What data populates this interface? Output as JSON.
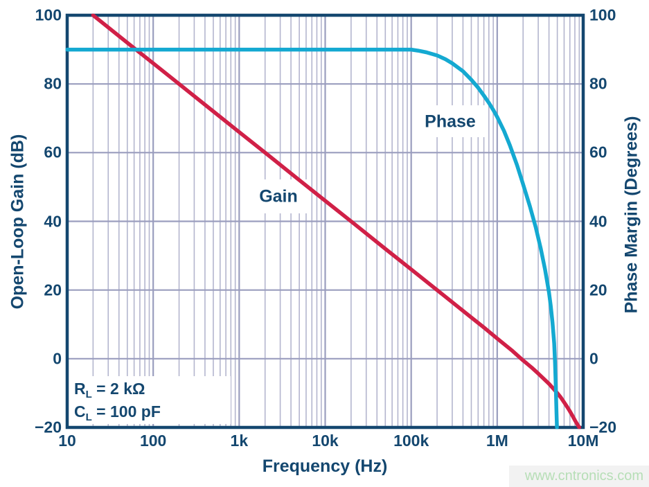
{
  "chart_data": {
    "type": "line",
    "title": "",
    "x_axis": {
      "label": "Frequency (Hz)",
      "scale": "log",
      "min": 10,
      "max": 10000000,
      "ticks": [
        {
          "value": 10,
          "label": "10"
        },
        {
          "value": 100,
          "label": "100"
        },
        {
          "value": 1000,
          "label": "1k"
        },
        {
          "value": 10000,
          "label": "10k"
        },
        {
          "value": 100000,
          "label": "100k"
        },
        {
          "value": 1000000,
          "label": "1M"
        },
        {
          "value": 10000000,
          "label": "10M"
        }
      ]
    },
    "y_axis_left": {
      "label": "Open-Loop Gain (dB)",
      "min": -20,
      "max": 100,
      "ticks": [
        {
          "value": 100,
          "label": "100"
        },
        {
          "value": 80,
          "label": "80"
        },
        {
          "value": 60,
          "label": "60"
        },
        {
          "value": 40,
          "label": "40"
        },
        {
          "value": 20,
          "label": "20"
        },
        {
          "value": 0,
          "label": "0"
        },
        {
          "value": -20,
          "label": "−20"
        }
      ]
    },
    "y_axis_right": {
      "label": "Phase Margin (Degrees)",
      "min": -20,
      "max": 100,
      "ticks": [
        {
          "value": 100,
          "label": "100"
        },
        {
          "value": 80,
          "label": "80"
        },
        {
          "value": 60,
          "label": "60"
        },
        {
          "value": 40,
          "label": "40"
        },
        {
          "value": 20,
          "label": "20"
        },
        {
          "value": 0,
          "label": "0"
        },
        {
          "value": -20,
          "label": "−20"
        }
      ]
    },
    "grid": {
      "horizontal_step": 20,
      "vertical": "log decades with minor lines 2-9",
      "legend_position": "none"
    },
    "series": [
      {
        "name": "Gain",
        "color": "#d02047",
        "axis": "left",
        "points": [
          [
            20,
            100
          ],
          [
            50,
            92
          ],
          [
            100,
            86
          ],
          [
            200,
            80
          ],
          [
            500,
            72
          ],
          [
            1000,
            66
          ],
          [
            2000,
            60
          ],
          [
            5000,
            52
          ],
          [
            10000,
            46
          ],
          [
            20000,
            40
          ],
          [
            50000,
            32
          ],
          [
            100000,
            26
          ],
          [
            200000,
            20
          ],
          [
            500000,
            12
          ],
          [
            700000,
            9.1
          ],
          [
            1000000,
            5.9
          ],
          [
            1500000,
            2.3
          ],
          [
            2000000,
            -0.5
          ],
          [
            2500000,
            -2.5
          ],
          [
            3000000,
            -4.3
          ],
          [
            3500000,
            -5.9
          ],
          [
            4000000,
            -7.3
          ],
          [
            4500000,
            -8.7
          ],
          [
            5000000,
            -10
          ],
          [
            5500000,
            -11.3
          ],
          [
            6000000,
            -12.7
          ],
          [
            6500000,
            -14
          ],
          [
            7000000,
            -15.3
          ],
          [
            7500000,
            -16.6
          ],
          [
            8000000,
            -17.9
          ],
          [
            8500000,
            -19
          ],
          [
            9000000,
            -20
          ]
        ]
      },
      {
        "name": "Phase",
        "color": "#14a9d1",
        "axis": "right",
        "points": [
          [
            10,
            90
          ],
          [
            100000,
            90
          ],
          [
            120000,
            89.7
          ],
          [
            150000,
            89.2
          ],
          [
            200000,
            88.3
          ],
          [
            250000,
            87.2
          ],
          [
            300000,
            86
          ],
          [
            400000,
            83.7
          ],
          [
            500000,
            81.2
          ],
          [
            600000,
            78.9
          ],
          [
            700000,
            76.6
          ],
          [
            800000,
            74.5
          ],
          [
            900000,
            72.4
          ],
          [
            1000000,
            70.4
          ],
          [
            1200000,
            66.3
          ],
          [
            1400000,
            62.2
          ],
          [
            1700000,
            56.4
          ],
          [
            2000000,
            50.8
          ],
          [
            2400000,
            44.4
          ],
          [
            2800000,
            38.3
          ],
          [
            3200000,
            32.2
          ],
          [
            3600000,
            26
          ],
          [
            4000000,
            19.3
          ],
          [
            4200000,
            15.3
          ],
          [
            4400000,
            10.5
          ],
          [
            4600000,
            4.5
          ],
          [
            4700000,
            -1
          ],
          [
            4800000,
            -8
          ],
          [
            4900000,
            -16
          ],
          [
            4950000,
            -20
          ]
        ]
      }
    ],
    "annotation": {
      "line1": {
        "sym": "R",
        "sub": "L",
        "rest": " = 2 kΩ"
      },
      "line2": {
        "sym": "C",
        "sub": "L",
        "rest": " = 100 pF"
      }
    },
    "watermark": "www.cntronics.com"
  },
  "colors": {
    "axis": "#14476f",
    "gain_curve": "#d02047",
    "phase_curve": "#14a9d1",
    "grid_minor": "#b3b5ce",
    "grid_major": "#9a9dbe",
    "mask": "#ffffff",
    "watermark_text": "#b6deb6",
    "watermark_bg": "#f2f2f2"
  }
}
